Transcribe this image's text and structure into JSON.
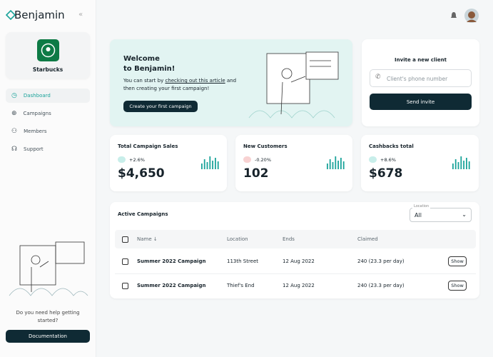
{
  "sidebar": {
    "brand": "Benjamin",
    "organization": "Starbucks",
    "nav": [
      "Dashboard",
      "Campaigns",
      "Members",
      "Support"
    ],
    "help": "Do you need help getting started?",
    "docs_button": "Documentation"
  },
  "welcome": {
    "title_lines": [
      "Welcome",
      "to Benjamin!"
    ],
    "text_before": "You can start by",
    "link": "checking out this article",
    "text_after": "and then creating your first campaign!",
    "button": "Create your first campaign"
  },
  "invite": {
    "title": "Invite a new client",
    "placeholder": "Client's phone number",
    "button": "Send invite"
  },
  "stats": [
    {
      "label": "Total Campaign Sales",
      "change": "+2.6%",
      "value": "$4,650"
    },
    {
      "label": "New Customers",
      "change": "-0.20%",
      "value": "102"
    },
    {
      "label": "Cashbacks total",
      "change": "+8.6%",
      "value": "$678"
    }
  ],
  "campaigns": {
    "title": "Active Campaigns",
    "filter_label": "Location",
    "filter_value": "All",
    "headers": [
      "Name",
      "Location",
      "Ends",
      "Claimed"
    ],
    "rows": [
      {
        "name": "Summer 2022 Campaign",
        "location": "113th Street",
        "ends": "12 Aug 2022",
        "claimed": "240 (23.3 per day)",
        "action": "Show"
      },
      {
        "name": "Summer 2022 Campaign",
        "location": "Thief's End",
        "ends": "12 Aug 2022",
        "claimed": "240 (23.3 per day)",
        "action": "Show"
      }
    ]
  }
}
